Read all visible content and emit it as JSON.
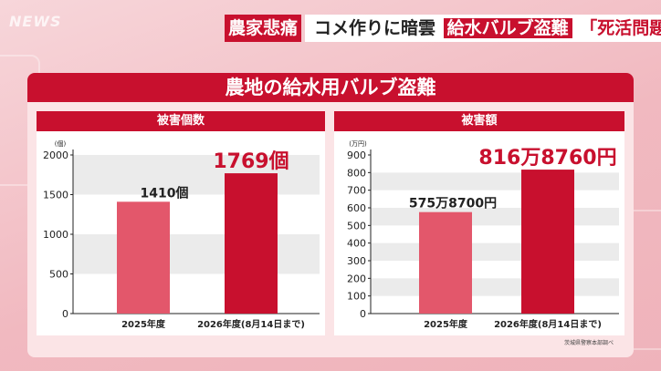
{
  "banner": {
    "tag": "農家悲痛",
    "part1": "コメ作りに暗雲",
    "part2": "給水バルブ盗難",
    "part3": "「死活問題」"
  },
  "logo": {
    "main": "NEWS"
  },
  "card": {
    "title": "農地の給水用バルブ盗難"
  },
  "credit": "茨城県警察本部調べ",
  "colors": {
    "accent": "#c8102e",
    "bar_light": "#e3576b",
    "bar_dark": "#c8102e"
  },
  "chart_data": [
    {
      "type": "bar",
      "title": "被害個数",
      "ylabel": "(個)",
      "categories": [
        "2025年度",
        "2026年度(8月14日まで)"
      ],
      "values": [
        1410,
        1769
      ],
      "data_labels": [
        "1410個",
        "1769個"
      ],
      "yticks": [
        0,
        500,
        1000,
        1500,
        2000
      ],
      "ylim": [
        0,
        2000
      ],
      "grid": "banded"
    },
    {
      "type": "bar",
      "title": "被害額",
      "ylabel": "(万円)",
      "categories": [
        "2025年度",
        "2026年度(8月14日まで)"
      ],
      "values": [
        575.87,
        816.876
      ],
      "data_labels": [
        "575万8700円",
        "816万8760円"
      ],
      "yticks": [
        0,
        100,
        200,
        300,
        400,
        500,
        600,
        700,
        800,
        900
      ],
      "ylim": [
        0,
        900
      ],
      "grid": "banded"
    }
  ]
}
